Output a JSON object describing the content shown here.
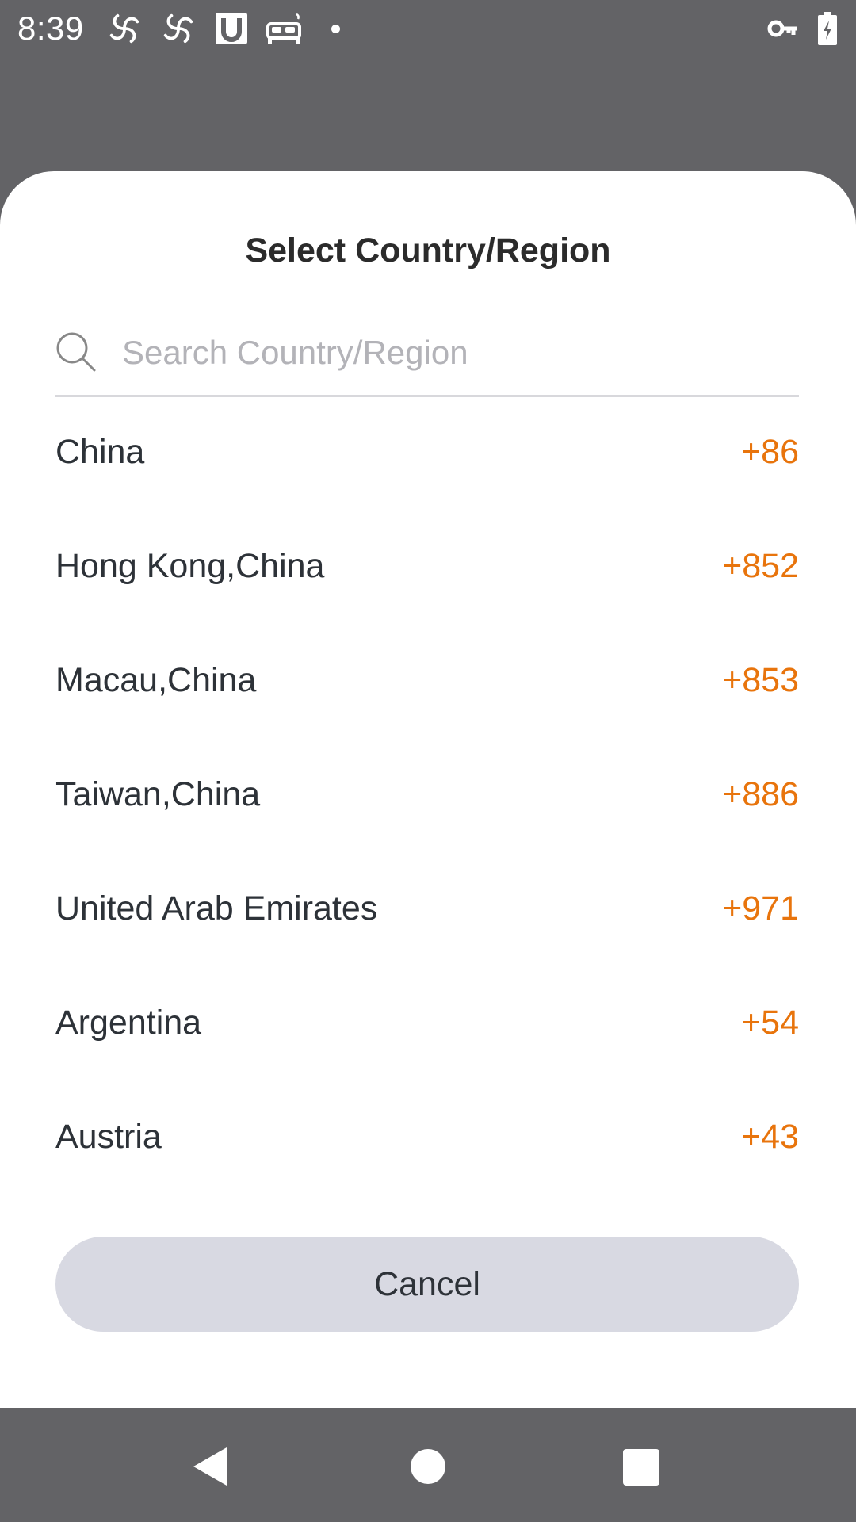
{
  "status_bar": {
    "time": "8:39",
    "icons_left": [
      "pinwheel-icon",
      "pinwheel-icon",
      "u-box-icon",
      "bed-icon",
      "dot-icon"
    ],
    "icons_right": [
      "vpn-key-icon",
      "battery-charging-icon"
    ]
  },
  "dialog": {
    "title": "Select Country/Region",
    "search": {
      "placeholder": "Search Country/Region",
      "value": ""
    },
    "countries": [
      {
        "name": "China",
        "code": "+86"
      },
      {
        "name": "Hong Kong,China",
        "code": "+852"
      },
      {
        "name": "Macau,China",
        "code": "+853"
      },
      {
        "name": "Taiwan,China",
        "code": "+886"
      },
      {
        "name": "United Arab Emirates",
        "code": "+971"
      },
      {
        "name": "Argentina",
        "code": "+54"
      },
      {
        "name": "Austria",
        "code": "+43"
      }
    ],
    "cancel_label": "Cancel"
  },
  "colors": {
    "accent": "#e8740c",
    "scrim": "#636366",
    "cancel_bg": "#d8d9e2"
  },
  "nav_bar": {
    "icons": [
      "back-icon",
      "home-icon",
      "recents-icon"
    ]
  }
}
